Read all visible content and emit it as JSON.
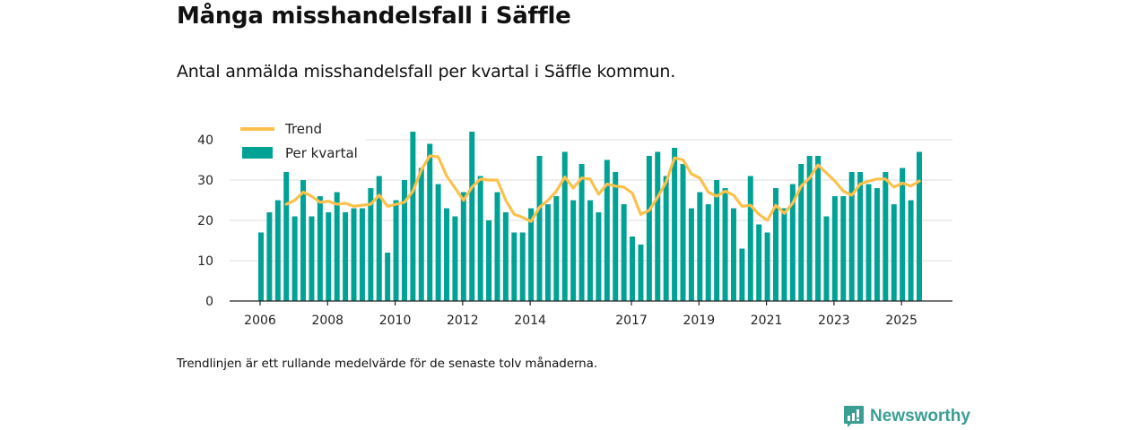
{
  "header": {
    "title": "Många misshandelsfall i Säffle",
    "subtitle": "Antal anmälda misshandelsfall per kvartal i Säffle kommun."
  },
  "footer": {
    "note": "Trendlinjen är ett rullande medelvärde för de senaste tolv månaderna.",
    "brand": "Newsworthy"
  },
  "colors": {
    "bar": "#00a296",
    "trend": "#fbc14c",
    "grid": "#dcdcdc",
    "axis": "#222222",
    "brand": "#3a9e92"
  },
  "chart_data": {
    "type": "bar",
    "title": "Många misshandelsfall i Säffle",
    "subtitle": "Antal anmälda misshandelsfall per kvartal i Säffle kommun.",
    "xlabel": "",
    "ylabel": "",
    "ylim": [
      0,
      42
    ],
    "yticks": [
      0,
      10,
      20,
      30,
      40
    ],
    "grid": true,
    "legend_position": "top-left",
    "xticks": [
      {
        "label": "2006",
        "year": 2006
      },
      {
        "label": "2008",
        "year": 2008
      },
      {
        "label": "2010",
        "year": 2010
      },
      {
        "label": "2012",
        "year": 2012
      },
      {
        "label": "2014",
        "year": 2014
      },
      {
        "label": "2017",
        "year": 2017
      },
      {
        "label": "2019",
        "year": 2019
      },
      {
        "label": "2021",
        "year": 2021
      },
      {
        "label": "2023",
        "year": 2023
      },
      {
        "label": "2025",
        "year": 2025
      }
    ],
    "start": {
      "year": 2006,
      "quarter": 1
    },
    "series": [
      {
        "name": "Per kvartal",
        "type": "bar",
        "values": [
          17,
          22,
          25,
          32,
          21,
          30,
          21,
          26,
          22,
          27,
          22,
          23,
          23,
          28,
          31,
          12,
          25,
          30,
          42,
          33,
          39,
          29,
          23,
          21,
          27,
          42,
          31,
          20,
          27,
          22,
          17,
          17,
          23,
          36,
          24,
          26,
          37,
          25,
          34,
          25,
          22,
          35,
          32,
          24,
          16,
          14,
          36,
          37,
          31,
          38,
          34,
          23,
          27,
          24,
          30,
          28,
          23,
          13,
          31,
          19,
          17,
          28,
          23,
          29,
          34,
          36,
          36,
          21,
          26,
          26,
          32,
          32,
          29,
          28,
          32,
          24,
          33,
          25,
          37
        ]
      },
      {
        "name": "Trend",
        "type": "line",
        "method": "rolling mean of last 4 quarters",
        "values": []
      }
    ]
  }
}
